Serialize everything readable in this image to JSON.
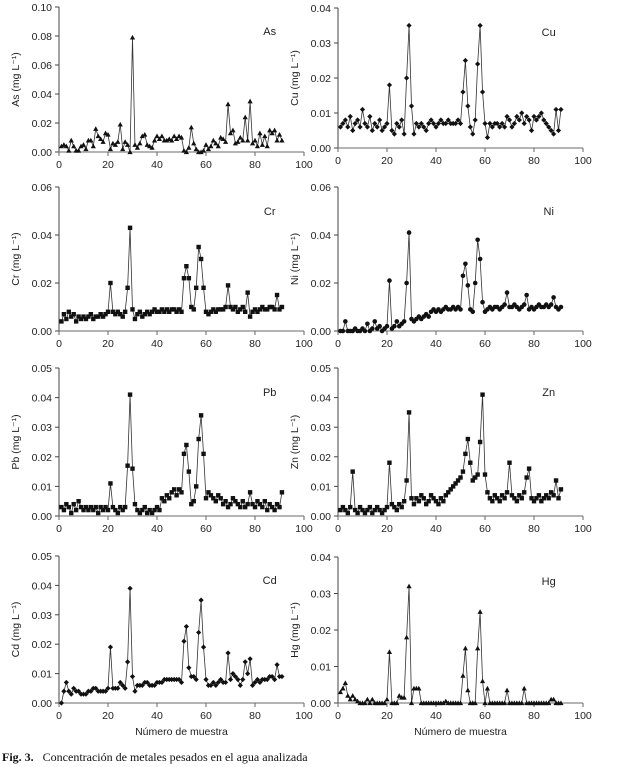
{
  "caption": {
    "label": "Fig. 3.",
    "text": "Concentración de metales pesados en el agua analizada"
  },
  "chart_data": [
    {
      "type": "line",
      "metal": "As",
      "ylabel": "As (mg L⁻¹)",
      "xlabel": "",
      "marker": "triangle",
      "xlim": [
        0,
        100
      ],
      "ylim": [
        0,
        0.1
      ],
      "yticks": [
        "0.00",
        "0.02",
        "0.04",
        "0.06",
        "0.08",
        "0.10"
      ],
      "xticks": [
        "0",
        "20",
        "40",
        "60",
        "80",
        "100"
      ],
      "x_start": 1,
      "values": [
        0.004,
        0.005,
        0.004,
        0.001,
        0.008,
        0.004,
        0.001,
        0.001,
        0.004,
        0.005,
        0.002,
        0.008,
        0.008,
        0.004,
        0.016,
        0.011,
        0.009,
        0.007,
        0.013,
        0.012,
        0.002,
        0.006,
        0.005,
        0.007,
        0.019,
        0.002,
        0.007,
        0.005,
        0.0,
        0.079,
        0.005,
        0.003,
        0.006,
        0.011,
        0.012,
        0.005,
        0.004,
        0.003,
        0.008,
        0.011,
        0.009,
        0.011,
        0.008,
        0.008,
        0.009,
        0.008,
        0.011,
        0.009,
        0.011,
        0.01,
        0.001,
        0.0,
        0.003,
        0.017,
        0.006,
        0.002,
        0.0,
        0.0,
        0.001,
        0.005,
        0.002,
        0.004,
        0.008,
        0.006,
        0.004,
        0.01,
        0.009,
        0.007,
        0.033,
        0.013,
        0.015,
        0.006,
        0.007,
        0.01,
        0.008,
        0.024,
        0.008,
        0.035,
        0.006,
        0.008,
        0.004,
        0.013,
        0.005,
        0.011,
        0.004,
        0.015,
        0.013,
        0.015,
        0.008,
        0.012,
        0.008
      ]
    },
    {
      "type": "line",
      "metal": "Cu",
      "ylabel": "Cu (mg L⁻¹)",
      "xlabel": "",
      "marker": "diamond",
      "xlim": [
        0,
        100
      ],
      "ylim": [
        0,
        0.04
      ],
      "yticks": [
        "0.00",
        "0.01",
        "0.02",
        "0.03",
        "0.04"
      ],
      "xticks": [
        "0",
        "20",
        "40",
        "60",
        "80",
        "100"
      ],
      "x_start": 1,
      "values": [
        0.006,
        0.007,
        0.008,
        0.006,
        0.009,
        0.005,
        0.007,
        0.008,
        0.006,
        0.011,
        0.007,
        0.006,
        0.009,
        0.005,
        0.007,
        0.006,
        0.008,
        0.005,
        0.006,
        0.007,
        0.018,
        0.005,
        0.004,
        0.007,
        0.006,
        0.008,
        0.004,
        0.02,
        0.035,
        0.012,
        0.004,
        0.007,
        0.006,
        0.007,
        0.006,
        0.005,
        0.007,
        0.008,
        0.007,
        0.006,
        0.007,
        0.008,
        0.007,
        0.007,
        0.008,
        0.007,
        0.007,
        0.007,
        0.008,
        0.007,
        0.016,
        0.025,
        0.012,
        0.006,
        0.004,
        0.008,
        0.024,
        0.035,
        0.016,
        0.007,
        0.003,
        0.007,
        0.006,
        0.007,
        0.007,
        0.006,
        0.007,
        0.006,
        0.009,
        0.008,
        0.006,
        0.007,
        0.009,
        0.008,
        0.01,
        0.007,
        0.009,
        0.008,
        0.005,
        0.009,
        0.008,
        0.009,
        0.01,
        0.008,
        0.007,
        0.006,
        0.005,
        0.004,
        0.011,
        0.005,
        0.011
      ]
    },
    {
      "type": "line",
      "metal": "Cr",
      "ylabel": "Cr (mg L⁻¹)",
      "xlabel": "",
      "marker": "square",
      "xlim": [
        0,
        100
      ],
      "ylim": [
        0,
        0.06
      ],
      "yticks": [
        "0.00",
        "0.02",
        "0.04",
        "0.06"
      ],
      "xticks": [
        "0",
        "20",
        "40",
        "60",
        "80",
        "100"
      ],
      "x_start": 1,
      "values": [
        0.004,
        0.007,
        0.005,
        0.008,
        0.006,
        0.007,
        0.004,
        0.006,
        0.005,
        0.006,
        0.005,
        0.006,
        0.007,
        0.005,
        0.006,
        0.006,
        0.007,
        0.006,
        0.007,
        0.008,
        0.02,
        0.008,
        0.007,
        0.008,
        0.007,
        0.006,
        0.008,
        0.018,
        0.043,
        0.009,
        0.005,
        0.007,
        0.008,
        0.006,
        0.007,
        0.008,
        0.007,
        0.008,
        0.009,
        0.008,
        0.008,
        0.009,
        0.008,
        0.009,
        0.008,
        0.009,
        0.009,
        0.008,
        0.009,
        0.008,
        0.022,
        0.027,
        0.022,
        0.01,
        0.009,
        0.018,
        0.035,
        0.03,
        0.018,
        0.008,
        0.007,
        0.008,
        0.009,
        0.008,
        0.009,
        0.009,
        0.009,
        0.01,
        0.019,
        0.01,
        0.009,
        0.01,
        0.008,
        0.009,
        0.01,
        0.008,
        0.016,
        0.006,
        0.008,
        0.009,
        0.008,
        0.009,
        0.01,
        0.009,
        0.009,
        0.01,
        0.01,
        0.009,
        0.015,
        0.009,
        0.01
      ]
    },
    {
      "type": "line",
      "metal": "Ni",
      "ylabel": "Ni (mg L⁻¹)",
      "xlabel": "",
      "marker": "circle",
      "xlim": [
        0,
        100
      ],
      "ylim": [
        0,
        0.06
      ],
      "yticks": [
        "0.00",
        "0.02",
        "0.04",
        "0.06"
      ],
      "xticks": [
        "0",
        "20",
        "40",
        "60",
        "80",
        "100"
      ],
      "x_start": 1,
      "values": [
        0.0,
        0.0,
        0.004,
        0.0,
        0.0,
        0.0,
        0.001,
        0.0,
        0.0,
        0.001,
        0.0,
        0.003,
        0.0,
        0.001,
        0.004,
        0.001,
        0.002,
        0.0,
        0.001,
        0.002,
        0.021,
        0.001,
        0.002,
        0.004,
        0.002,
        0.003,
        0.004,
        0.02,
        0.041,
        0.005,
        0.004,
        0.005,
        0.006,
        0.005,
        0.006,
        0.007,
        0.006,
        0.008,
        0.009,
        0.008,
        0.009,
        0.008,
        0.009,
        0.01,
        0.009,
        0.009,
        0.01,
        0.009,
        0.01,
        0.009,
        0.023,
        0.028,
        0.019,
        0.009,
        0.008,
        0.02,
        0.038,
        0.03,
        0.012,
        0.008,
        0.009,
        0.01,
        0.009,
        0.01,
        0.01,
        0.009,
        0.01,
        0.011,
        0.016,
        0.01,
        0.01,
        0.011,
        0.01,
        0.009,
        0.01,
        0.011,
        0.015,
        0.009,
        0.01,
        0.009,
        0.01,
        0.011,
        0.01,
        0.01,
        0.011,
        0.01,
        0.011,
        0.014,
        0.01,
        0.009,
        0.01
      ]
    },
    {
      "type": "line",
      "metal": "Pb",
      "ylabel": "Pb (mg L⁻¹)",
      "xlabel": "",
      "marker": "square",
      "xlim": [
        0,
        100
      ],
      "ylim": [
        0,
        0.05
      ],
      "yticks": [
        "0.00",
        "0.01",
        "0.02",
        "0.03",
        "0.04",
        "0.05"
      ],
      "xticks": [
        "0",
        "20",
        "40",
        "60",
        "80",
        "100"
      ],
      "x_start": 1,
      "values": [
        0.003,
        0.002,
        0.004,
        0.003,
        0.001,
        0.004,
        0.002,
        0.005,
        0.003,
        0.002,
        0.003,
        0.002,
        0.003,
        0.002,
        0.003,
        0.001,
        0.003,
        0.002,
        0.003,
        0.002,
        0.011,
        0.003,
        0.002,
        0.001,
        0.003,
        0.002,
        0.003,
        0.017,
        0.041,
        0.016,
        0.004,
        0.002,
        0.001,
        0.002,
        0.003,
        0.001,
        0.002,
        0.001,
        0.002,
        0.003,
        0.002,
        0.006,
        0.005,
        0.007,
        0.006,
        0.008,
        0.009,
        0.007,
        0.009,
        0.008,
        0.021,
        0.024,
        0.015,
        0.004,
        0.005,
        0.01,
        0.026,
        0.034,
        0.021,
        0.006,
        0.008,
        0.007,
        0.006,
        0.005,
        0.007,
        0.006,
        0.004,
        0.005,
        0.003,
        0.004,
        0.006,
        0.005,
        0.004,
        0.003,
        0.005,
        0.003,
        0.004,
        0.008,
        0.004,
        0.003,
        0.005,
        0.004,
        0.003,
        0.005,
        0.002,
        0.004,
        0.003,
        0.002,
        0.004,
        0.003,
        0.008
      ]
    },
    {
      "type": "line",
      "metal": "Zn",
      "ylabel": "Zn (mg L⁻¹)",
      "xlabel": "",
      "marker": "square",
      "xlim": [
        0,
        100
      ],
      "ylim": [
        0,
        0.05
      ],
      "yticks": [
        "0.00",
        "0.01",
        "0.02",
        "0.03",
        "0.04",
        "0.05"
      ],
      "xticks": [
        "0",
        "20",
        "40",
        "60",
        "80",
        "100"
      ],
      "x_start": 1,
      "values": [
        0.002,
        0.003,
        0.002,
        0.001,
        0.003,
        0.015,
        0.002,
        0.001,
        0.003,
        0.002,
        0.001,
        0.002,
        0.003,
        0.001,
        0.002,
        0.003,
        0.002,
        0.001,
        0.002,
        0.003,
        0.018,
        0.004,
        0.003,
        0.002,
        0.004,
        0.003,
        0.005,
        0.012,
        0.035,
        0.006,
        0.004,
        0.006,
        0.005,
        0.007,
        0.006,
        0.004,
        0.005,
        0.007,
        0.006,
        0.005,
        0.004,
        0.006,
        0.005,
        0.007,
        0.008,
        0.009,
        0.01,
        0.011,
        0.012,
        0.013,
        0.015,
        0.021,
        0.026,
        0.018,
        0.012,
        0.013,
        0.014,
        0.025,
        0.041,
        0.014,
        0.008,
        0.006,
        0.005,
        0.007,
        0.006,
        0.005,
        0.007,
        0.006,
        0.008,
        0.018,
        0.007,
        0.006,
        0.005,
        0.007,
        0.006,
        0.008,
        0.013,
        0.016,
        0.006,
        0.005,
        0.006,
        0.007,
        0.005,
        0.006,
        0.007,
        0.006,
        0.008,
        0.007,
        0.012,
        0.006,
        0.009
      ]
    },
    {
      "type": "line",
      "metal": "Cd",
      "ylabel": "Cd (mg L⁻¹)",
      "xlabel": "Número de muestra",
      "marker": "diamond",
      "xlim": [
        0,
        100
      ],
      "ylim": [
        0,
        0.05
      ],
      "yticks": [
        "0.00",
        "0.01",
        "0.02",
        "0.03",
        "0.04",
        "0.05"
      ],
      "xticks": [
        "0",
        "20",
        "40",
        "60",
        "80",
        "100"
      ],
      "x_start": 1,
      "values": [
        0.0,
        0.004,
        0.007,
        0.004,
        0.003,
        0.005,
        0.004,
        0.004,
        0.003,
        0.003,
        0.003,
        0.004,
        0.004,
        0.005,
        0.005,
        0.004,
        0.004,
        0.004,
        0.004,
        0.005,
        0.019,
        0.005,
        0.005,
        0.005,
        0.007,
        0.006,
        0.005,
        0.014,
        0.039,
        0.009,
        0.004,
        0.006,
        0.006,
        0.006,
        0.007,
        0.007,
        0.006,
        0.006,
        0.006,
        0.007,
        0.007,
        0.007,
        0.008,
        0.008,
        0.008,
        0.008,
        0.008,
        0.008,
        0.008,
        0.007,
        0.021,
        0.026,
        0.012,
        0.009,
        0.009,
        0.008,
        0.024,
        0.035,
        0.019,
        0.008,
        0.006,
        0.006,
        0.007,
        0.006,
        0.007,
        0.008,
        0.007,
        0.007,
        0.017,
        0.008,
        0.01,
        0.009,
        0.008,
        0.006,
        0.008,
        0.014,
        0.01,
        0.015,
        0.006,
        0.007,
        0.008,
        0.007,
        0.008,
        0.008,
        0.008,
        0.009,
        0.009,
        0.008,
        0.013,
        0.009,
        0.009
      ]
    },
    {
      "type": "line",
      "metal": "Hg",
      "ylabel": "Hg (mg L⁻¹)",
      "xlabel": "Número de muestra",
      "marker": "triangle",
      "xlim": [
        0,
        100
      ],
      "ylim": [
        0,
        0.04
      ],
      "yticks": [
        "0.00",
        "0.01",
        "0.02",
        "0.03",
        "0.04"
      ],
      "xticks": [
        "0",
        "20",
        "40",
        "60",
        "80",
        "100"
      ],
      "x_start": 1,
      "values": [
        0.003,
        0.004,
        0.0055,
        0.002,
        0.001,
        0.002,
        0.001,
        0.0005,
        0.0,
        0.0,
        0.0,
        0.001,
        0.0,
        0.001,
        0.0,
        0.0,
        0.0,
        0.0,
        0.0,
        0.001,
        0.014,
        0.0,
        0.0,
        0.0,
        0.002,
        0.0015,
        0.0015,
        0.018,
        0.032,
        0.0,
        0.004,
        0.004,
        0.004,
        0.0,
        0.0,
        0.0,
        0.0,
        0.0,
        0.0,
        0.0,
        0.0,
        0.0,
        0.0,
        0.0005,
        0.0,
        0.0,
        0.0,
        0.0,
        0.0,
        0.0,
        0.0075,
        0.015,
        0.0035,
        0.0,
        0.0,
        0.0,
        0.015,
        0.025,
        0.006,
        0.0,
        0.004,
        0.0,
        0.0,
        0.0,
        0.0,
        0.0,
        0.0,
        0.0,
        0.0035,
        0.0,
        0.0,
        0.0,
        0.0,
        0.0,
        0.0,
        0.004,
        0.0,
        0.0,
        0.0,
        0.0,
        0.0,
        0.0,
        0.0,
        0.0,
        0.0,
        0.0,
        0.001,
        0.001,
        0.0,
        0.0,
        0.0
      ]
    }
  ]
}
